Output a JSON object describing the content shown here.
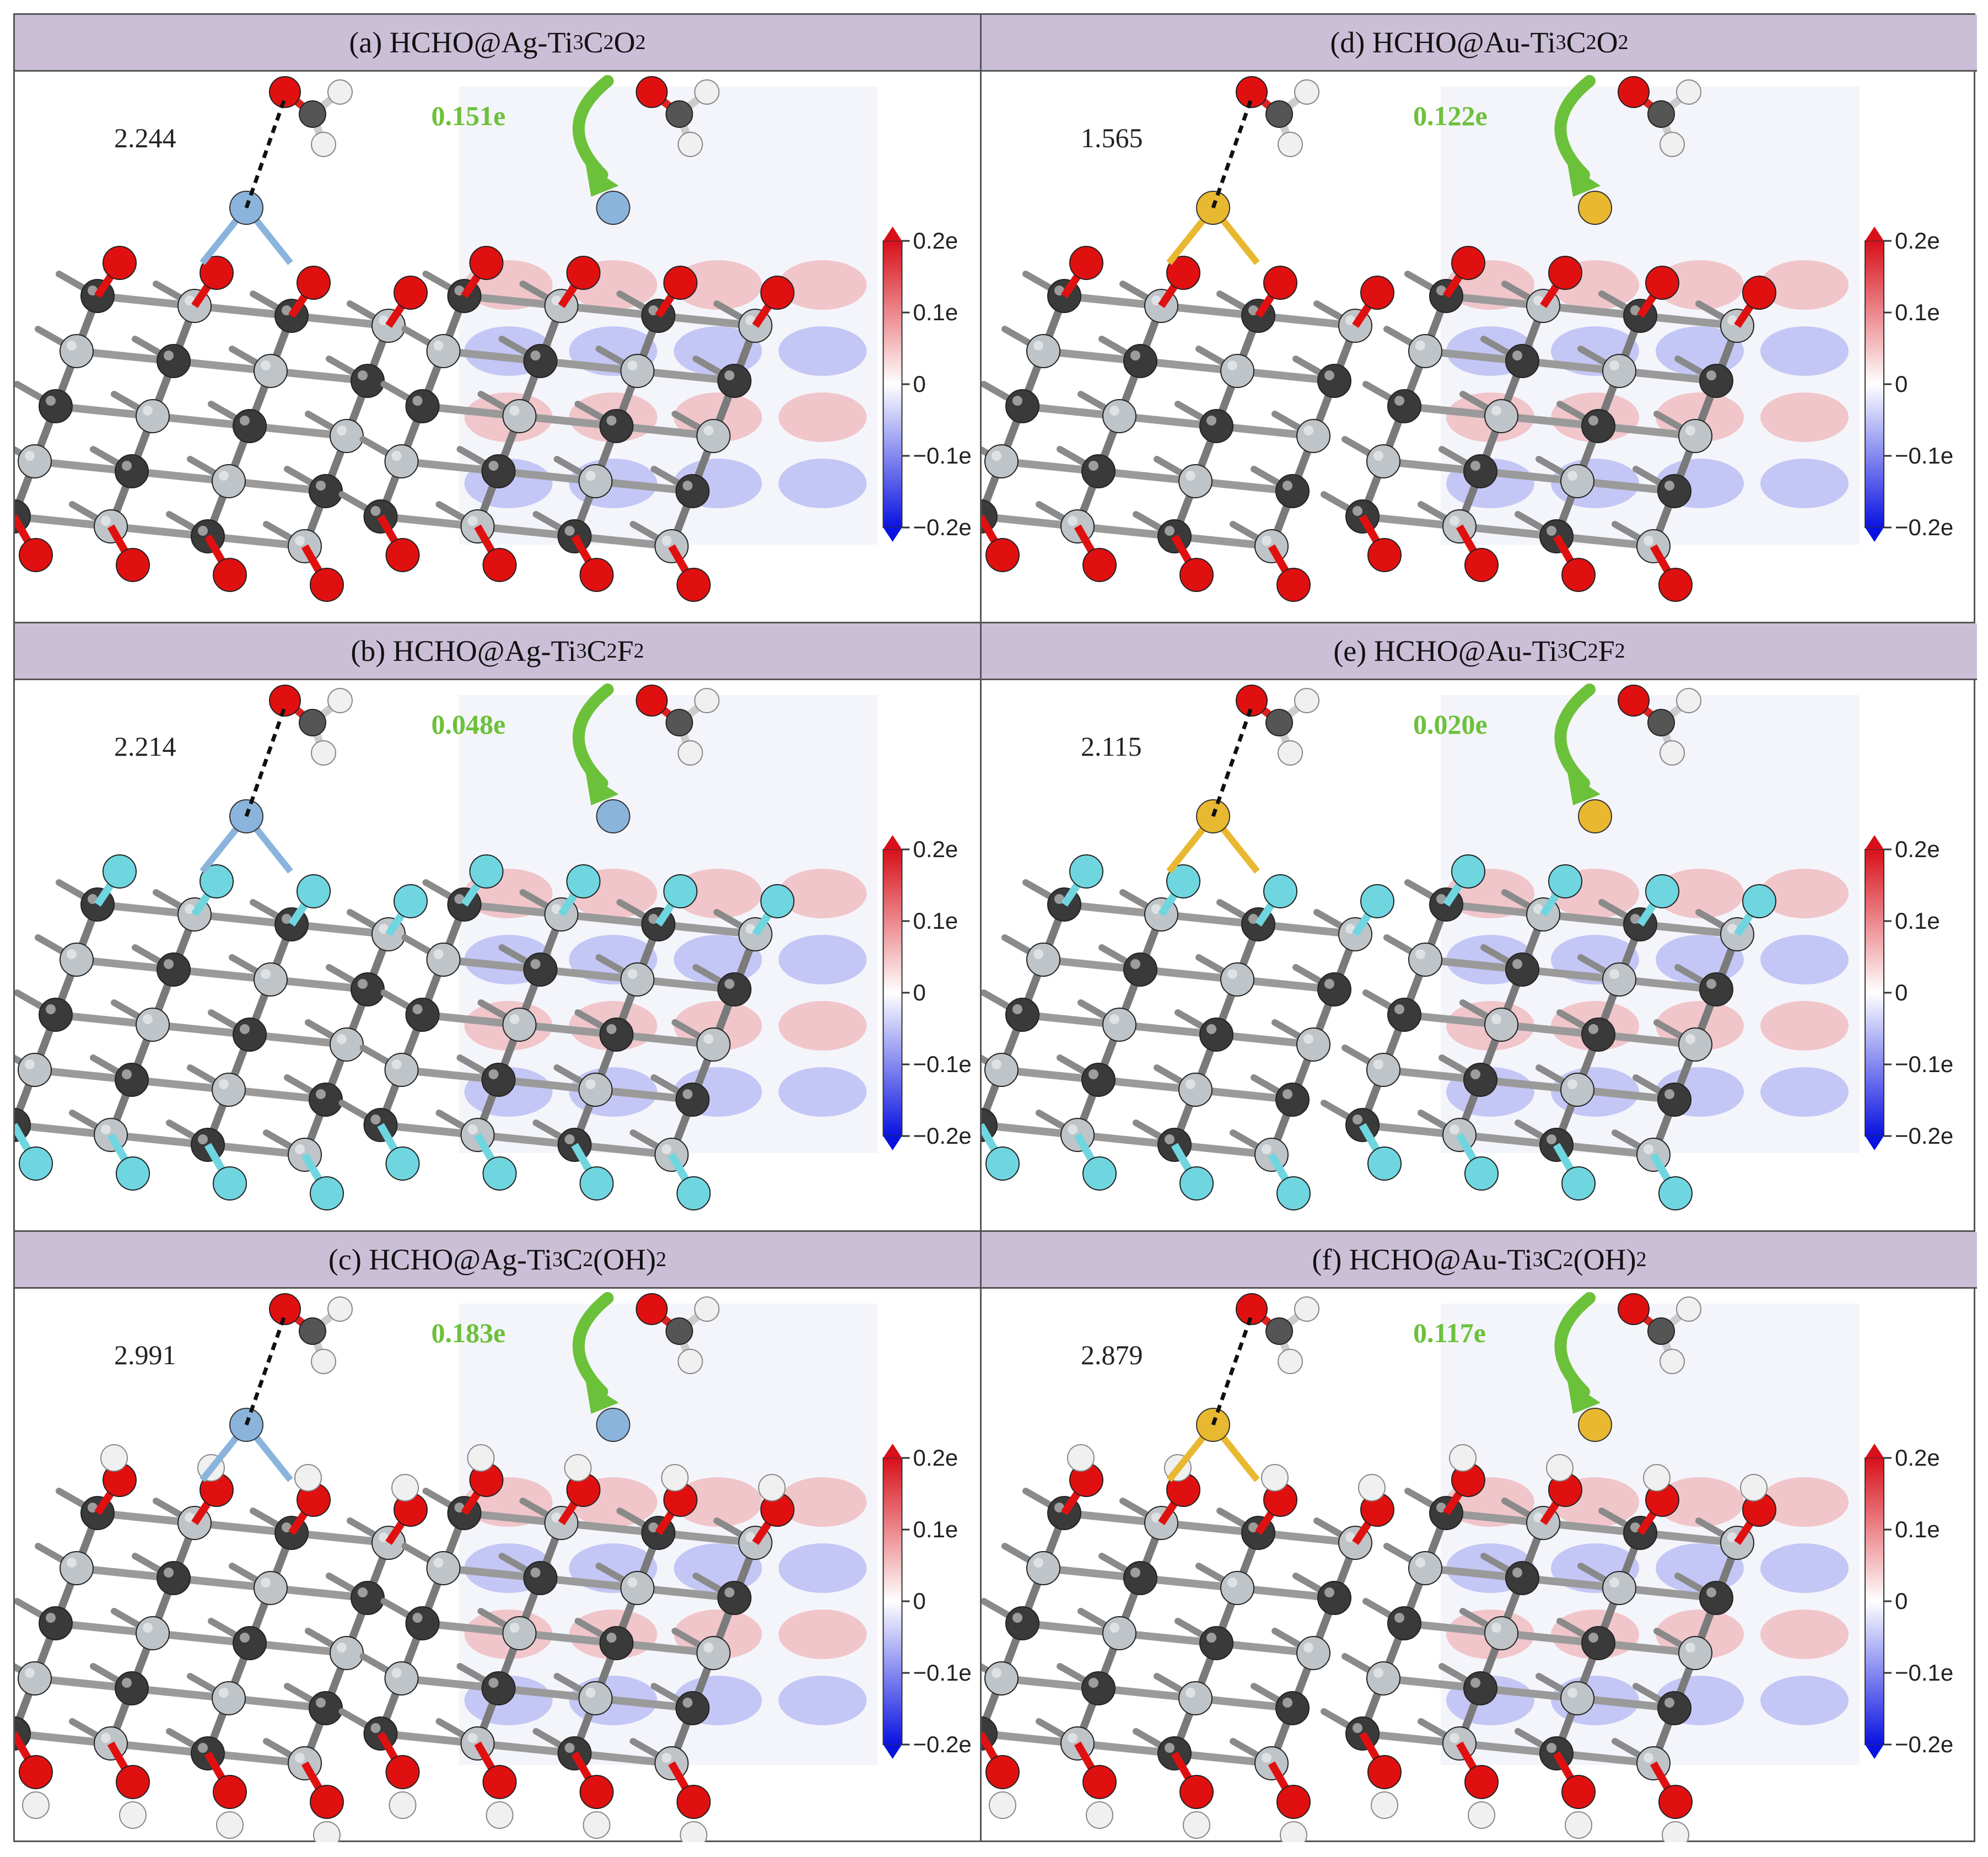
{
  "panels": [
    {
      "id": "a",
      "prefix": "(a) HCHO@Ag-Ti",
      "sub1": "3",
      "mid1": "C",
      "sub2": "2",
      "tail": "O",
      "sub3": "2",
      "distance": "2.244",
      "charge": "0.151e",
      "metal": "Ag",
      "termination": "O2"
    },
    {
      "id": "b",
      "prefix": "(b) HCHO@Ag-Ti",
      "sub1": "3",
      "mid1": "C",
      "sub2": "2",
      "tail": "F",
      "sub3": "2",
      "distance": "2.214",
      "charge": "0.048e",
      "metal": "Ag",
      "termination": "F2"
    },
    {
      "id": "c",
      "prefix": "(c) HCHO@Ag-Ti",
      "sub1": "3",
      "mid1": "C",
      "sub2": "2",
      "tail": "(OH)",
      "sub3": "2",
      "distance": "2.991",
      "charge": "0.183e",
      "metal": "Ag",
      "termination": "(OH)2"
    },
    {
      "id": "d",
      "prefix": "(d) HCHO@Au-Ti",
      "sub1": "3",
      "mid1": "C",
      "sub2": "2",
      "tail": "O",
      "sub3": "2",
      "distance": "1.565",
      "charge": "0.122e",
      "metal": "Au",
      "termination": "O2"
    },
    {
      "id": "e",
      "prefix": "(e) HCHO@Au-Ti",
      "sub1": "3",
      "mid1": "C",
      "sub2": "2",
      "tail": "F",
      "sub3": "2",
      "distance": "2.115",
      "charge": "0.020e",
      "metal": "Au",
      "termination": "F2"
    },
    {
      "id": "f",
      "prefix": "(f) HCHO@Au-Ti",
      "sub1": "3",
      "mid1": "C",
      "sub2": "2",
      "tail": "(OH)",
      "sub3": "2",
      "distance": "2.879",
      "charge": "0.117e",
      "metal": "Au",
      "termination": "(OH)2"
    }
  ],
  "colorbar": {
    "ticks": [
      "0.2e",
      "0.1e",
      "0",
      "−0.1e",
      "−0.2e"
    ]
  },
  "colors": {
    "header_bg": "#cbbfd8",
    "charge_arrow": "#6cc13a",
    "oxygen": "#e01010",
    "fluorine": "#6fd6e0",
    "hydrogen": "#f0f0f0",
    "carbon_ti": "#555555",
    "ag": "#8ab4dc",
    "au": "#e8b830",
    "accumulation": "#e32020",
    "depletion": "#1a24e0"
  },
  "icons": {
    "arrow": "curved-arrow-icon"
  }
}
